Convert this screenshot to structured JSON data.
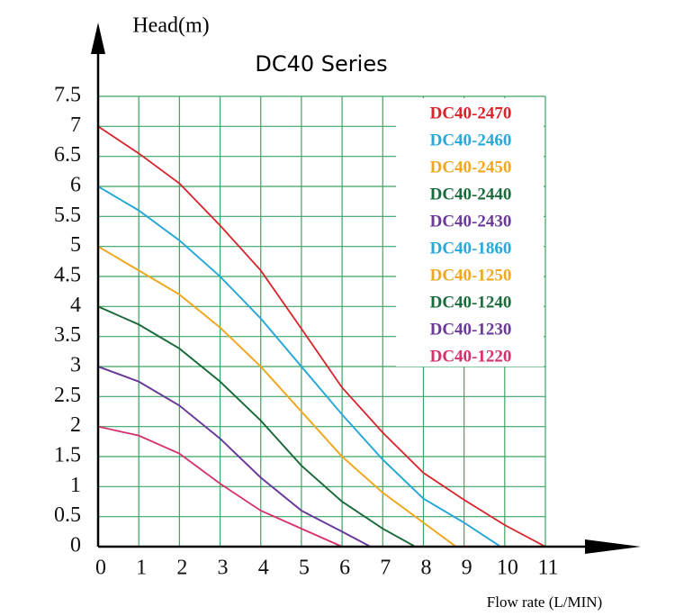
{
  "chart_data": {
    "type": "line",
    "title": "DC40 Series",
    "y_label": "Head(m)",
    "x_label": "Flow rate (L/MIN)",
    "xlim": [
      0,
      11
    ],
    "xticks": [
      0,
      1,
      2,
      3,
      4,
      5,
      6,
      7,
      8,
      9,
      10,
      11
    ],
    "ylim": [
      0,
      7.5
    ],
    "yticks": [
      0,
      0.5,
      1,
      1.5,
      2,
      2.5,
      3,
      3.5,
      4,
      4.5,
      5,
      5.5,
      6,
      6.5,
      7,
      7.5
    ],
    "grid": true,
    "legend": "upper right",
    "series": [
      {
        "name": "DC40-2470",
        "color": "#d8232a",
        "x": [
          0,
          1,
          2,
          3,
          4,
          5,
          6,
          7,
          8,
          9,
          10,
          11
        ],
        "values": [
          7,
          6.55,
          6.05,
          5.35,
          4.6,
          3.63,
          2.65,
          1.9,
          1.23,
          0.78,
          0.36,
          0
        ]
      },
      {
        "name": "DC40-2460",
        "color": "#2aa8d8",
        "x": [
          0,
          1,
          2,
          3,
          4,
          5,
          6,
          7,
          8,
          9,
          9.9
        ],
        "values": [
          6,
          5.6,
          5.1,
          4.5,
          3.8,
          3.0,
          2.2,
          1.45,
          0.8,
          0.4,
          0
        ]
      },
      {
        "name": "DC40-2450",
        "color": "#f0a81e",
        "x": [
          0,
          1,
          2,
          3,
          4,
          5,
          6,
          7,
          8,
          8.8
        ],
        "values": [
          5,
          4.6,
          4.2,
          3.65,
          3.0,
          2.25,
          1.5,
          0.9,
          0.4,
          0
        ]
      },
      {
        "name": "DC40-2440",
        "color": "#1c6b3c",
        "x": [
          0,
          1,
          2,
          3,
          4,
          5,
          6,
          7,
          7.8
        ],
        "values": [
          4,
          3.7,
          3.3,
          2.75,
          2.1,
          1.35,
          0.75,
          0.3,
          0
        ]
      },
      {
        "name": "DC40-2430",
        "color": "#6a3a9a",
        "x": [
          0,
          1,
          2,
          3,
          4,
          5,
          6,
          6.7
        ],
        "values": [
          3,
          2.75,
          2.35,
          1.8,
          1.15,
          0.6,
          0.25,
          0
        ]
      },
      {
        "name": "DC40-1860",
        "color": "#2aa8d8",
        "x": [
          0,
          1,
          2,
          3,
          4,
          5,
          6,
          7,
          8,
          9,
          9.9
        ],
        "values": [
          6,
          5.6,
          5.1,
          4.5,
          3.8,
          3.0,
          2.2,
          1.45,
          0.8,
          0.4,
          0
        ]
      },
      {
        "name": "DC40-1250",
        "color": "#f0a81e",
        "x": [
          0,
          1,
          2,
          3,
          4,
          5,
          6,
          7,
          8,
          8.8
        ],
        "values": [
          5,
          4.6,
          4.2,
          3.65,
          3.0,
          2.25,
          1.5,
          0.9,
          0.4,
          0
        ]
      },
      {
        "name": "DC40-1240",
        "color": "#1c6b3c",
        "x": [
          0,
          1,
          2,
          3,
          4,
          5,
          6,
          7,
          7.8
        ],
        "values": [
          4,
          3.7,
          3.3,
          2.75,
          2.1,
          1.35,
          0.75,
          0.3,
          0
        ]
      },
      {
        "name": "DC40-1230",
        "color": "#6a3a9a",
        "x": [
          0,
          1,
          2,
          3,
          4,
          5,
          6,
          6.7
        ],
        "values": [
          3,
          2.75,
          2.35,
          1.8,
          1.15,
          0.6,
          0.25,
          0
        ]
      },
      {
        "name": "DC40-1220",
        "color": "#d6306f",
        "x": [
          0,
          1,
          2,
          3,
          4,
          5,
          6
        ],
        "values": [
          2,
          1.85,
          1.55,
          1.05,
          0.6,
          0.3,
          0
        ]
      }
    ]
  }
}
